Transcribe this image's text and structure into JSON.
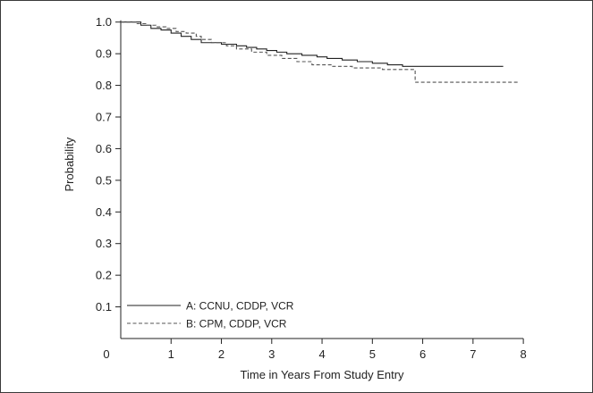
{
  "chart_data": {
    "type": "line",
    "title": "",
    "xlabel": "Time in Years From Study Entry",
    "ylabel": "Probability",
    "xlim": [
      0,
      8.3
    ],
    "ylim": [
      0,
      1.05
    ],
    "x_ticks": [
      0,
      1,
      2,
      3,
      4,
      5,
      6,
      7,
      8
    ],
    "y_ticks": [
      0.1,
      0.2,
      0.3,
      0.4,
      0.5,
      0.6,
      0.7,
      0.8,
      0.9,
      1.0
    ],
    "x_tick_labels": [
      "0",
      "1",
      "2",
      "3",
      "4",
      "5",
      "6",
      "7",
      "8"
    ],
    "y_tick_labels": [
      "0.1",
      "0.2",
      "0.3",
      "0.4",
      "0.5",
      "0.6",
      "0.7",
      "0.8",
      "0.9",
      "1.0"
    ],
    "grid": false,
    "legend_position": "bottom-left",
    "series": [
      {
        "name": "A: CCNU, CDDP, VCR",
        "style": "solid",
        "color": "#222222",
        "x": [
          0,
          0.4,
          0.6,
          0.8,
          1.0,
          1.2,
          1.4,
          1.6,
          2.0,
          2.3,
          2.5,
          2.7,
          2.9,
          3.1,
          3.3,
          3.6,
          3.9,
          4.1,
          4.4,
          4.7,
          5.0,
          5.3,
          5.6,
          7.6
        ],
        "y": [
          1.0,
          0.99,
          0.98,
          0.975,
          0.965,
          0.955,
          0.945,
          0.935,
          0.93,
          0.925,
          0.92,
          0.915,
          0.91,
          0.905,
          0.9,
          0.895,
          0.89,
          0.885,
          0.88,
          0.875,
          0.87,
          0.865,
          0.86,
          0.86
        ]
      },
      {
        "name": "B: CPM, CDDP, VCR",
        "style": "dashed",
        "color": "#555555",
        "x": [
          0,
          0.3,
          0.5,
          0.7,
          0.9,
          1.1,
          1.3,
          1.5,
          1.6,
          1.8,
          2.1,
          2.3,
          2.6,
          2.9,
          3.2,
          3.5,
          3.8,
          4.2,
          4.6,
          5.2,
          5.8,
          5.85,
          7.9
        ],
        "y": [
          1.0,
          0.995,
          0.99,
          0.985,
          0.98,
          0.97,
          0.965,
          0.955,
          0.945,
          0.935,
          0.925,
          0.915,
          0.905,
          0.895,
          0.885,
          0.875,
          0.865,
          0.86,
          0.855,
          0.85,
          0.85,
          0.81,
          0.81
        ]
      }
    ]
  }
}
